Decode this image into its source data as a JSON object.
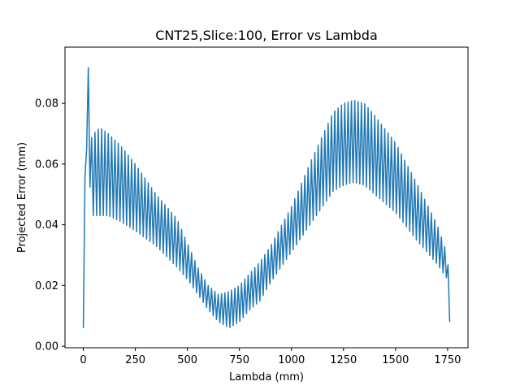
{
  "chart_data": {
    "type": "line",
    "title": "CNT25,Slice:100, Error vs Lambda",
    "xlabel": "Lambda (mm)",
    "ylabel": "Projected Error (mm)",
    "xlim": [
      -88,
      1848
    ],
    "ylim": [
      -0.0005,
      0.0985
    ],
    "xticks": [
      0,
      250,
      500,
      750,
      1000,
      1250,
      1500,
      1750
    ],
    "xtick_labels": [
      "0",
      "250",
      "500",
      "750",
      "1000",
      "1250",
      "1500",
      "1750"
    ],
    "yticks": [
      0.0,
      0.02,
      0.04,
      0.06,
      0.08
    ],
    "ytick_labels": [
      "0.00",
      "0.02",
      "0.04",
      "0.06",
      "0.08"
    ],
    "grid": false,
    "series": [
      {
        "color": "#1f77b4",
        "envelope": {
          "x": [
            0,
            5,
            12,
            20,
            27,
            35,
            50,
            80,
            120,
            180,
            250,
            350,
            450,
            500,
            550,
            600,
            650,
            700,
            750,
            800,
            850,
            900,
            1000,
            1100,
            1200,
            1250,
            1300,
            1350,
            1400,
            1500,
            1600,
            1700,
            1740,
            1750,
            1755,
            1760
          ],
          "lower": [
            0.006,
            0.02,
            0.06,
            0.07,
            0.068,
            0.043,
            0.043,
            0.043,
            0.043,
            0.041,
            0.038,
            0.033,
            0.026,
            0.022,
            0.017,
            0.012,
            0.008,
            0.006,
            0.008,
            0.012,
            0.015,
            0.021,
            0.031,
            0.041,
            0.051,
            0.053,
            0.054,
            0.053,
            0.05,
            0.044,
            0.035,
            0.027,
            0.023,
            0.022,
            0.015,
            0.008
          ],
          "upper": [
            0.018,
            0.045,
            0.07,
            0.094,
            0.09,
            0.068,
            0.07,
            0.072,
            0.07,
            0.066,
            0.06,
            0.05,
            0.042,
            0.034,
            0.026,
            0.02,
            0.017,
            0.018,
            0.02,
            0.024,
            0.028,
            0.033,
            0.046,
            0.062,
            0.077,
            0.08,
            0.081,
            0.08,
            0.076,
            0.067,
            0.054,
            0.04,
            0.032,
            0.03,
            0.022,
            0.014
          ]
        },
        "oscillation_period": 16
      }
    ]
  }
}
